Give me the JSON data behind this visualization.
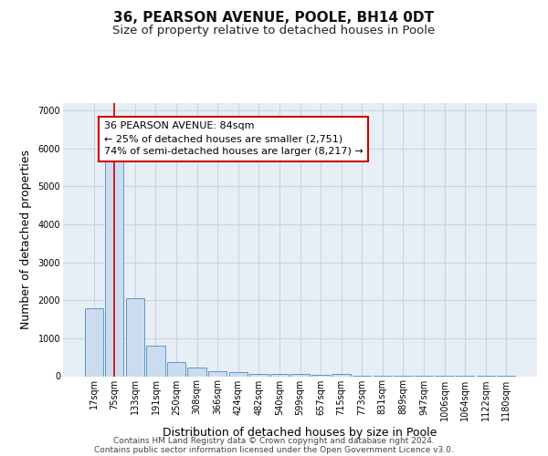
{
  "title": "36, PEARSON AVENUE, POOLE, BH14 0DT",
  "subtitle": "Size of property relative to detached houses in Poole",
  "xlabel": "Distribution of detached houses by size in Poole",
  "ylabel": "Number of detached properties",
  "footer_line1": "Contains HM Land Registry data © Crown copyright and database right 2024.",
  "footer_line2": "Contains public sector information licensed under the Open Government Licence v3.0.",
  "categories": [
    "17sqm",
    "75sqm",
    "133sqm",
    "191sqm",
    "250sqm",
    "308sqm",
    "366sqm",
    "424sqm",
    "482sqm",
    "540sqm",
    "599sqm",
    "657sqm",
    "715sqm",
    "773sqm",
    "831sqm",
    "889sqm",
    "947sqm",
    "1006sqm",
    "1064sqm",
    "1122sqm",
    "1180sqm"
  ],
  "values": [
    1780,
    5750,
    2050,
    800,
    370,
    230,
    130,
    100,
    70,
    70,
    55,
    30,
    50,
    5,
    5,
    3,
    2,
    2,
    1,
    1,
    1
  ],
  "bar_color": "#ccdcee",
  "bar_edge_color": "#5a9ac8",
  "bar_edge_width": 0.7,
  "property_line_color": "#cc0000",
  "annotation_text": "36 PEARSON AVENUE: 84sqm\n← 25% of detached houses are smaller (2,751)\n74% of semi-detached houses are larger (8,217) →",
  "annotation_box_color": "#ffffff",
  "annotation_box_edge_color": "#cc0000",
  "ylim": [
    0,
    7200
  ],
  "yticks": [
    0,
    1000,
    2000,
    3000,
    4000,
    5000,
    6000,
    7000
  ],
  "plot_bg_color": "#e8eef5",
  "grid_color": "#c8d4e4",
  "title_fontsize": 11,
  "subtitle_fontsize": 9.5,
  "axis_label_fontsize": 9,
  "tick_fontsize": 7,
  "annotation_fontsize": 8,
  "footer_fontsize": 6.5
}
